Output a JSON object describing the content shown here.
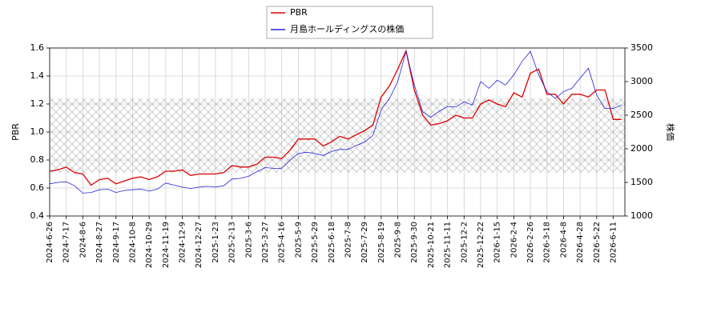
{
  "chart_data": {
    "type": "line",
    "categories": [
      "2024-6-26",
      null,
      "2024-7-17",
      null,
      "2024-8-6",
      null,
      "2024-8-27",
      null,
      "2024-9-17",
      null,
      "2024-10-8",
      null,
      "2024-10-29",
      null,
      "2024-11-19",
      null,
      "2024-12-9",
      null,
      "2024-12-27",
      null,
      "2025-1-23",
      null,
      "2025-2-13",
      null,
      "2025-3-6",
      null,
      "2025-3-27",
      null,
      "2025-4-16",
      null,
      "2025-5-9",
      null,
      "2025-5-29",
      null,
      "2025-6-18",
      null,
      "2025-7-8",
      null,
      "2025-7-29",
      null,
      "2025-8-19",
      null,
      "2025-9-8",
      null,
      "2025-9-30",
      null,
      "2025-10-21",
      null,
      "2025-11-11",
      null,
      "2025-12-2",
      null,
      "2025-12-22",
      null,
      "2026-1-15",
      null,
      "2026-2-4",
      null,
      "2026-2-26",
      null,
      "2026-3-18",
      null,
      "2026-4-8",
      null,
      "2026-4-28",
      null,
      "2026-5-22",
      null,
      "2026-6-11",
      null
    ],
    "series": [
      {
        "name": "PBR",
        "color": "#dd0000",
        "values": [
          0.72,
          0.73,
          0.75,
          0.71,
          0.7,
          0.62,
          0.66,
          0.67,
          0.63,
          0.65,
          0.67,
          0.68,
          0.66,
          0.68,
          0.72,
          0.72,
          0.73,
          0.69,
          0.7,
          0.7,
          0.7,
          0.71,
          0.76,
          0.75,
          0.75,
          0.77,
          0.82,
          0.82,
          0.81,
          0.87,
          0.95,
          0.95,
          0.95,
          0.9,
          0.93,
          0.97,
          0.95,
          0.98,
          1.01,
          1.05,
          1.25,
          1.33,
          1.45,
          1.58,
          1.3,
          1.12,
          1.05,
          1.06,
          1.08,
          1.12,
          1.1,
          1.1,
          1.2,
          1.23,
          1.2,
          1.18,
          1.28,
          1.25,
          1.42,
          1.45,
          1.27,
          1.27,
          1.2,
          1.27,
          1.27,
          1.25,
          1.3,
          1.3,
          1.09,
          1.09
        ]
      },
      {
        "name": "月島ホールディングスの株価",
        "color": "#2222dd",
        "axis": "y2",
        "values": [
          1480,
          1500,
          1510,
          1450,
          1340,
          1350,
          1390,
          1400,
          1350,
          1380,
          1390,
          1400,
          1370,
          1400,
          1490,
          1460,
          1430,
          1410,
          1430,
          1440,
          1430,
          1450,
          1550,
          1560,
          1590,
          1660,
          1720,
          1710,
          1710,
          1830,
          1930,
          1950,
          1930,
          1900,
          1960,
          1990,
          1990,
          2050,
          2100,
          2200,
          2580,
          2750,
          3000,
          3450,
          2950,
          2550,
          2470,
          2560,
          2630,
          2620,
          2700,
          2650,
          3000,
          2900,
          3020,
          2950,
          3100,
          3300,
          3450,
          3100,
          2850,
          2750,
          2850,
          2900,
          3050,
          3200,
          2800,
          2600,
          2600,
          2650
        ]
      }
    ],
    "band": [
      0.71,
      1.24
    ],
    "ylabel": "PBR",
    "y2label": "株価",
    "ylim": [
      0.4,
      1.6
    ],
    "yticks": [
      0.4,
      0.6,
      0.8,
      {
        "value": 1,
        "label": "1.0"
      },
      1.2,
      1.4,
      1.6
    ],
    "y2lim": [
      1000,
      3500
    ],
    "y2ticks": [
      1000,
      1500,
      2000,
      2500,
      3000,
      3500
    ],
    "grid": true
  }
}
